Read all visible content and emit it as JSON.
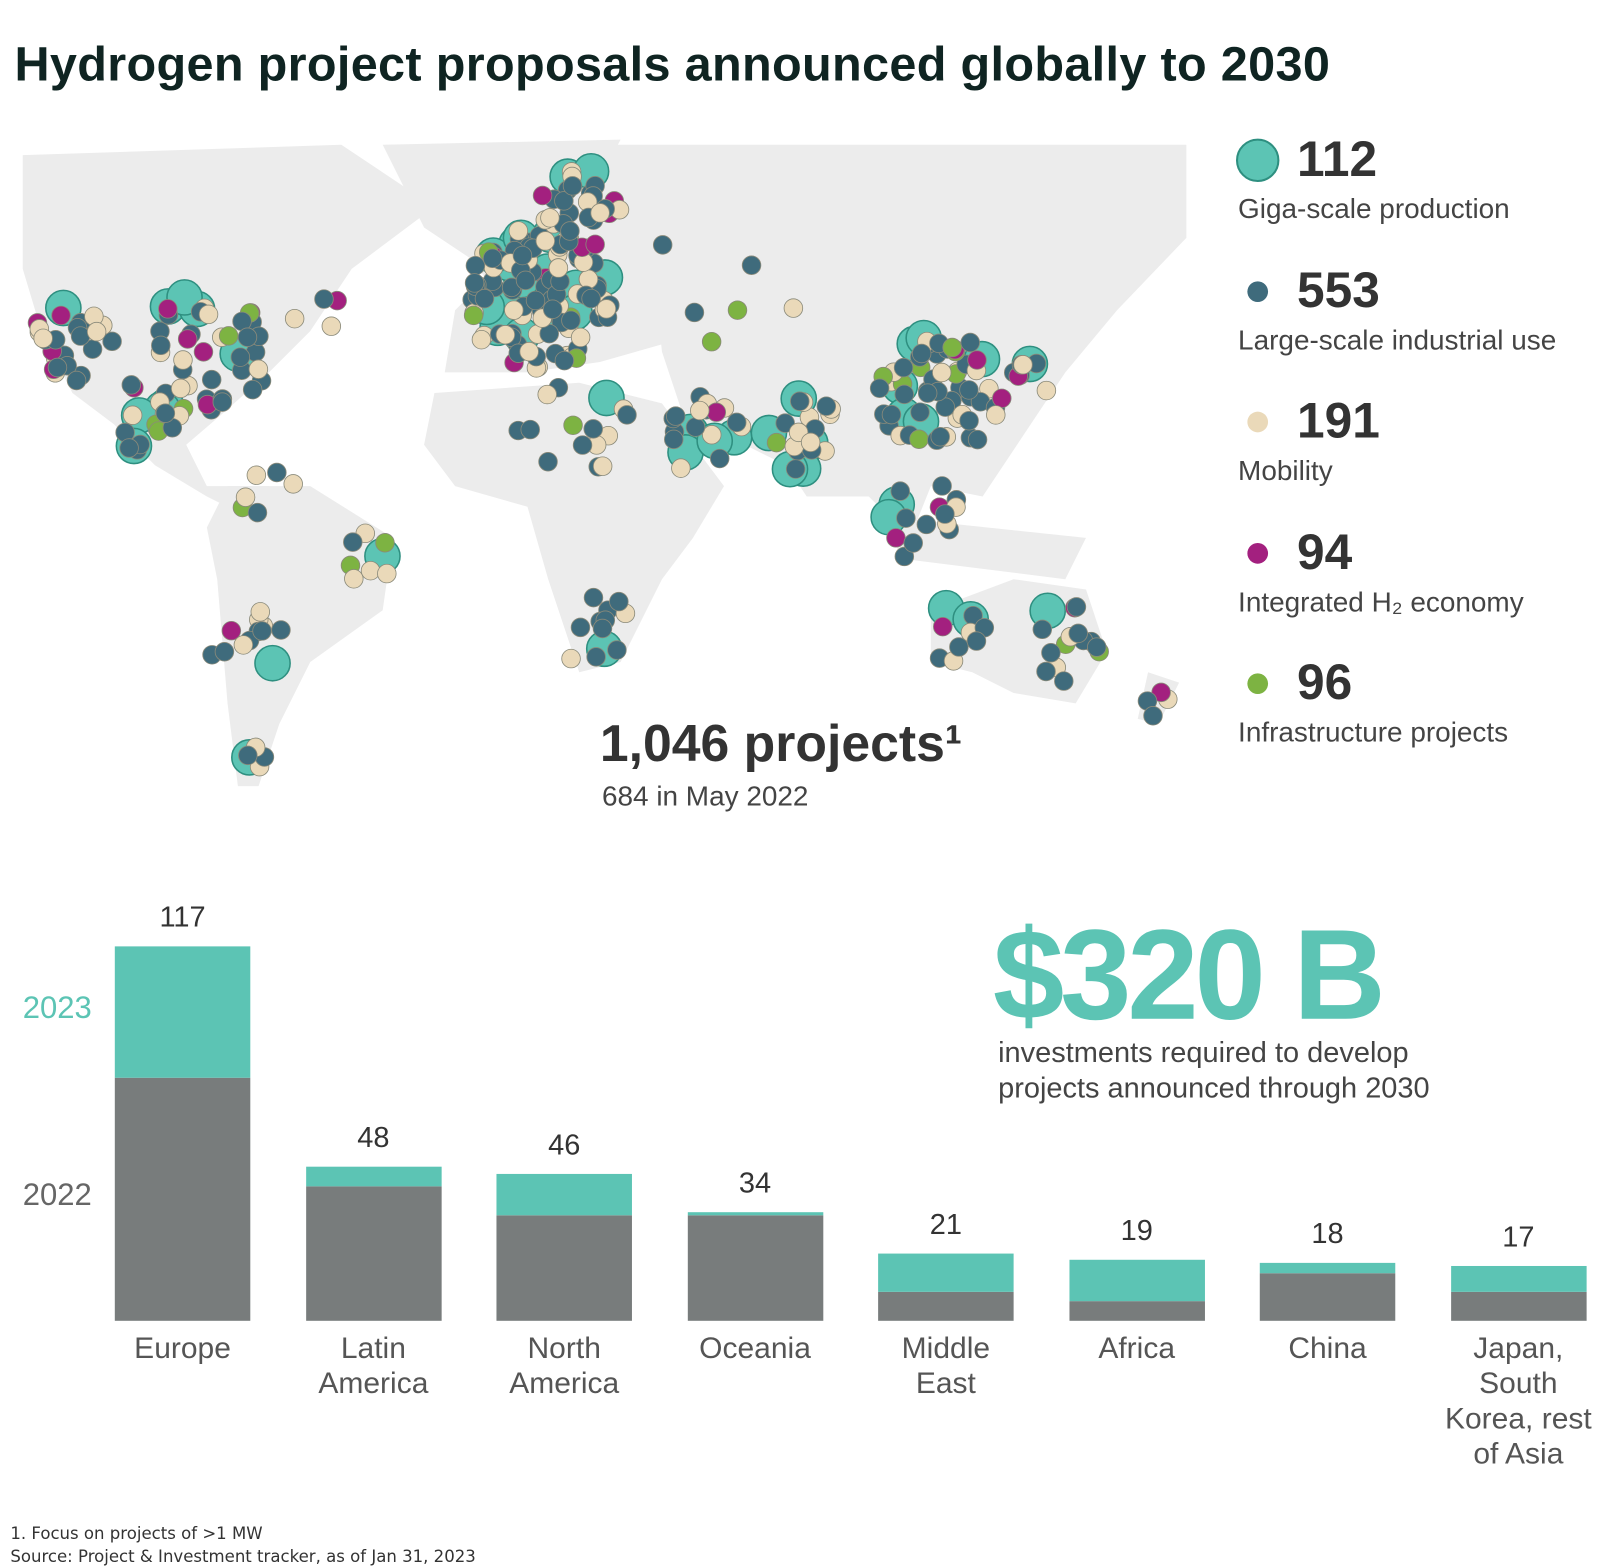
{
  "title": "Hydrogen project proposals announced globally to 2030",
  "map": {
    "legend": [
      {
        "count": 112,
        "label": "Giga-scale production",
        "color": "#5cc4b4"
      },
      {
        "count": 553,
        "label": "Large-scale industrial use",
        "color": "#3f6b7c"
      },
      {
        "count": 191,
        "label": "Mobility",
        "color": "#ead9b9"
      },
      {
        "count": 94,
        "label": "Integrated H₂ economy",
        "color": "#a3207f"
      },
      {
        "count": 96,
        "label": "Infrastructure projects",
        "color": "#7db342"
      }
    ],
    "headline": "1,046 projects¹",
    "subline": "684 in May 2022"
  },
  "chart_data": {
    "type": "bar",
    "stacked": true,
    "categories": [
      "Europe",
      "Latin America",
      "North America",
      "Oceania",
      "Middle East",
      "Africa",
      "China",
      "Japan, South Korea, rest of Asia"
    ],
    "series": [
      {
        "name": "2022",
        "color": "#787c7c",
        "values": [
          76,
          42,
          33,
          33,
          9,
          6,
          15,
          9
        ]
      },
      {
        "name": "2023",
        "color": "#5cc4b4",
        "values": [
          41,
          6,
          13,
          1,
          12,
          13,
          3,
          8
        ]
      }
    ],
    "totals": [
      117,
      48,
      46,
      34,
      21,
      19,
      18,
      17
    ]
  },
  "investment": {
    "value": "$320 B",
    "description": [
      "investments required to develop",
      "projects announced through 2030"
    ]
  },
  "footnotes": [
    "1. Focus on projects of >1 MW",
    "Source: Project & Investment tracker, as of Jan 31, 2023"
  ]
}
